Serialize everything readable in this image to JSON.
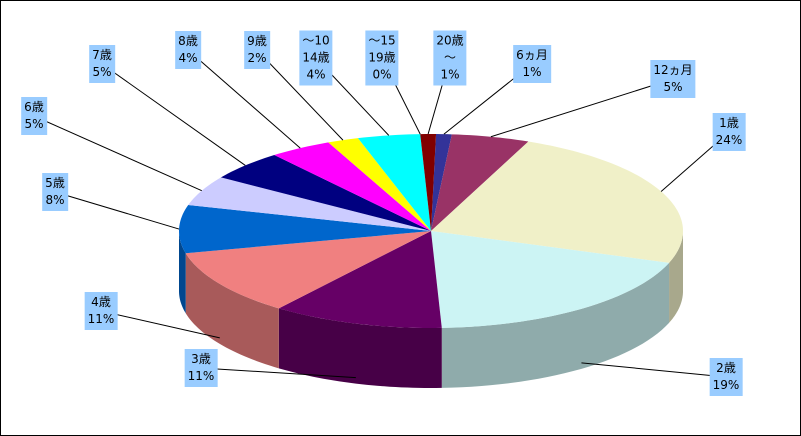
{
  "chart_data": {
    "type": "pie3d",
    "categories": [
      "6ヵ月",
      "12ヵ月",
      "1歳",
      "2歳",
      "3歳",
      "4歳",
      "5歳",
      "6歳",
      "7歳",
      "8歳",
      "9歳",
      "～10\n14歳",
      "～15\n19歳",
      "20歳\n～"
    ],
    "values": [
      1,
      5,
      24,
      19,
      11,
      11,
      8,
      5,
      5,
      4,
      2,
      4,
      0,
      1
    ],
    "value_labels": [
      "1%",
      "5%",
      "24%",
      "19%",
      "11%",
      "11%",
      "8%",
      "5%",
      "5%",
      "4%",
      "2%",
      "4%",
      "0%",
      "1%"
    ],
    "colors": [
      "#333399",
      "#993366",
      "#f0f0c8",
      "#ccf4f4",
      "#660066",
      "#f08080",
      "#0066cc",
      "#ccccff",
      "#000080",
      "#ff00ff",
      "#ffff00",
      "#00ffff",
      "#800080",
      "#800000"
    ]
  }
}
